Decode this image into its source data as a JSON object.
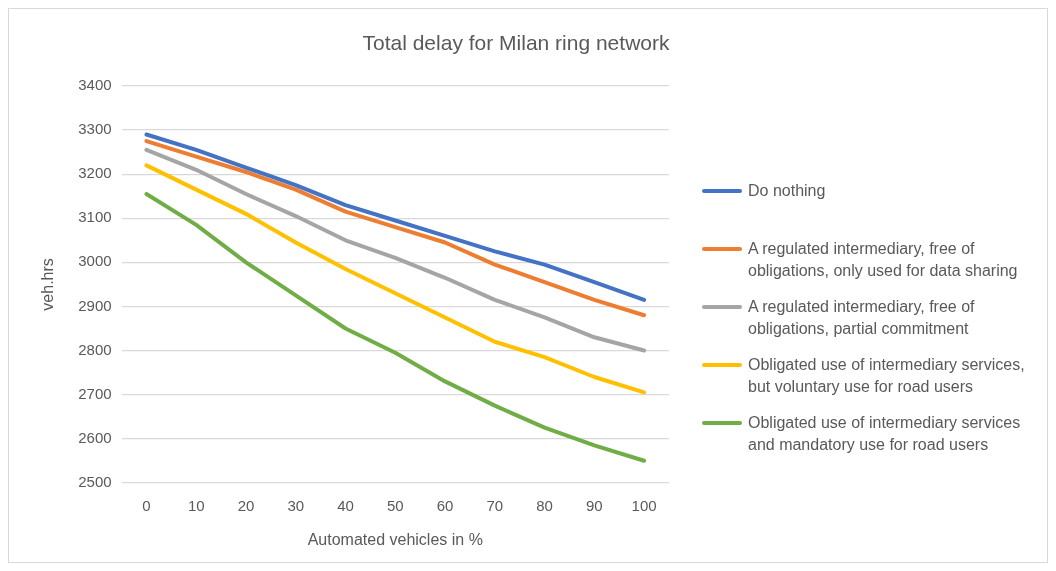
{
  "chart_data": {
    "type": "line",
    "title": "Total delay for Milan ring network",
    "xlabel": "Automated vehicles in %",
    "ylabel": "veh.hrs",
    "categories": [
      "0",
      "10",
      "20",
      "30",
      "40",
      "50",
      "60",
      "70",
      "80",
      "90",
      "100"
    ],
    "series": [
      {
        "name": "Do nothing",
        "color": "#4472c4",
        "values": [
          3290,
          3255,
          3215,
          3175,
          3130,
          3095,
          3060,
          3025,
          2995,
          2955,
          2915
        ]
      },
      {
        "name": "A regulated intermediary, free of obligations, only used for data sharing",
        "color": "#ed7d31",
        "values": [
          3275,
          3240,
          3205,
          3165,
          3115,
          3080,
          3045,
          2995,
          2955,
          2915,
          2880
        ]
      },
      {
        "name": "A regulated intermediary, free of obligations, partial commitment",
        "color": "#a5a5a5",
        "values": [
          3255,
          3210,
          3155,
          3105,
          3050,
          3010,
          2965,
          2915,
          2875,
          2830,
          2800
        ]
      },
      {
        "name": "Obligated use of intermediary services, but voluntary use for road users",
        "color": "#ffc000",
        "values": [
          3220,
          3165,
          3110,
          3045,
          2985,
          2930,
          2875,
          2820,
          2785,
          2740,
          2705
        ]
      },
      {
        "name": "Obligated use of intermediary services and mandatory use for road users",
        "color": "#70ad47",
        "values": [
          3155,
          3085,
          3000,
          2925,
          2850,
          2795,
          2730,
          2675,
          2625,
          2585,
          2550
        ]
      }
    ],
    "ylim": [
      2500,
      3400
    ],
    "yticks": [
      2500,
      2600,
      2700,
      2800,
      2900,
      3000,
      3100,
      3200,
      3300,
      3400
    ],
    "grid": "y",
    "legend": "right",
    "marker": "none"
  }
}
